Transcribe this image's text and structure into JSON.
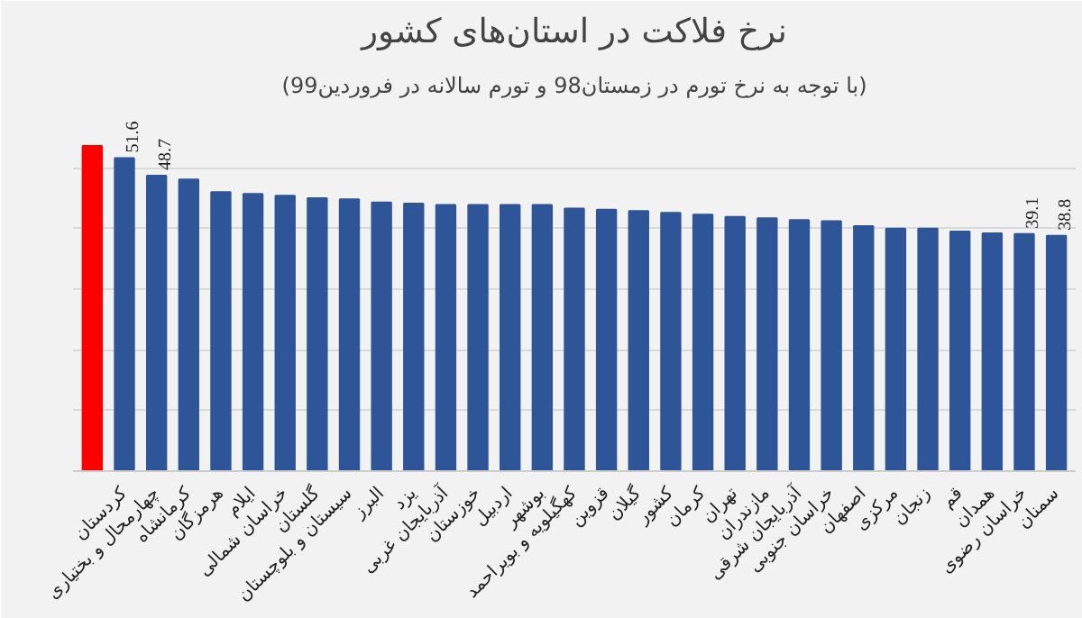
{
  "chart_data": {
    "type": "bar",
    "title": "نرخ فلاکت در استان‌های کشور",
    "subtitle": "(با توجه به نرخ تورم در زمستان98 و تورم سالانه در فروردین99)",
    "categories": [
      null,
      "کردستان",
      "چهارمحال و بختیاری",
      "کرمانشاه",
      "هرمزگان",
      "ایلام",
      "خراسان شمالی",
      "گلستان",
      "سیستان و بلوچستان",
      "البرز",
      "یزد",
      "آذربایجان غربی",
      "خوزستان",
      "اردبیل",
      "بوشهر",
      "کهگیلویه و بویراحمد",
      "قزوین",
      "گیلان",
      "کشور",
      "کرمان",
      "تهران",
      "مازندران",
      "آذربایجان شرقی",
      "خراسان جنوبی",
      "اصفهان",
      "مرکزی",
      "زنجان",
      "قم",
      "همدان",
      "خراسان رضوی",
      "سمنان"
    ],
    "values": [
      53.6,
      51.6,
      48.7,
      48.1,
      46.0,
      45.7,
      45.4,
      45.0,
      44.8,
      44.3,
      44.1,
      43.9,
      43.9,
      43.9,
      43.9,
      43.3,
      43.1,
      42.9,
      42.6,
      42.3,
      41.9,
      41.7,
      41.4,
      41.2,
      40.4,
      40.0,
      40.0,
      39.5,
      39.2,
      39.1,
      38.8
    ],
    "value_labels": [
      null,
      "51.6",
      "48.7",
      null,
      null,
      null,
      null,
      null,
      null,
      null,
      null,
      null,
      null,
      null,
      null,
      null,
      null,
      null,
      null,
      null,
      null,
      null,
      null,
      null,
      null,
      null,
      null,
      null,
      null,
      "39.1",
      "38.8"
    ],
    "colors": [
      "#ff0000",
      "#2e5597",
      "#2e5597",
      "#2e5597",
      "#2e5597",
      "#2e5597",
      "#2e5597",
      "#2e5597",
      "#2e5597",
      "#2e5597",
      "#2e5597",
      "#2e5597",
      "#2e5597",
      "#2e5597",
      "#2e5597",
      "#2e5597",
      "#2e5597",
      "#2e5597",
      "#2e5597",
      "#2e5597",
      "#2e5597",
      "#2e5597",
      "#2e5597",
      "#2e5597",
      "#2e5597",
      "#2e5597",
      "#2e5597",
      "#2e5597",
      "#2e5597",
      "#2e5597",
      "#2e5597"
    ],
    "ylim": [
      0,
      60
    ],
    "yticks": [
      {
        "value": 10,
        "label": null
      },
      {
        "value": 20,
        "label": null
      },
      {
        "value": 30,
        "label": null
      },
      {
        "value": 40,
        "label": null
      },
      {
        "value": 50,
        "label": null
      }
    ],
    "grid": "y",
    "tick_labels": "x"
  }
}
